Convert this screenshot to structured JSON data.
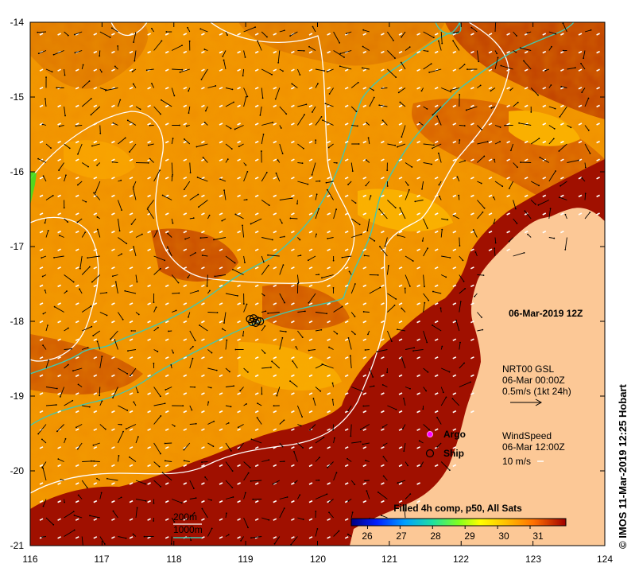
{
  "map": {
    "lon_ticks": [
      "116",
      "117",
      "118",
      "119",
      "120",
      "121",
      "122",
      "123",
      "124"
    ],
    "lat_ticks": [
      "-14",
      "-15",
      "-16",
      "-17",
      "-18",
      "-19",
      "-20",
      "-21"
    ],
    "extent": {
      "lon": [
        116,
        124
      ],
      "lat": [
        -21,
        -14
      ]
    },
    "date_label": "06-Mar-2019 12Z",
    "currents": {
      "line1": "NRT00 GSL",
      "line2": "06-Mar 00:00Z",
      "line3": "0.5m/s (1kt 24h)"
    },
    "markers": {
      "argo_label": "Argo",
      "ship_label": "Ship"
    },
    "wind": {
      "line1": "WindSpeed",
      "line2": "06-Mar 12:00Z",
      "line3": "10 m/s"
    },
    "colorbar": {
      "title": "Filled 4h comp, p50, All Sats",
      "ticks": [
        "26",
        "27",
        "28",
        "29",
        "30",
        "31"
      ],
      "range": [
        25.5,
        32.1
      ]
    },
    "isobaths": {
      "label_200": "200m",
      "label_1000": "1000m",
      "color_200": "#ffffff",
      "color_1000": "#40c8b0"
    },
    "credit": "IMOS 11-Mar-2019 12:25 Hobart",
    "credit_symbol": "©",
    "colors": {
      "land": "#fcc896",
      "sst_warm": "#a01000",
      "sst_mid": "#f09000"
    },
    "ship_positions": [
      {
        "lon": 119.06,
        "lat": -17.97
      },
      {
        "lon": 119.11,
        "lat": -17.96
      },
      {
        "lon": 119.16,
        "lat": -17.99
      },
      {
        "lon": 119.09,
        "lat": -18.01
      },
      {
        "lon": 119.14,
        "lat": -18.02
      },
      {
        "lon": 119.2,
        "lat": -18.0
      }
    ]
  }
}
